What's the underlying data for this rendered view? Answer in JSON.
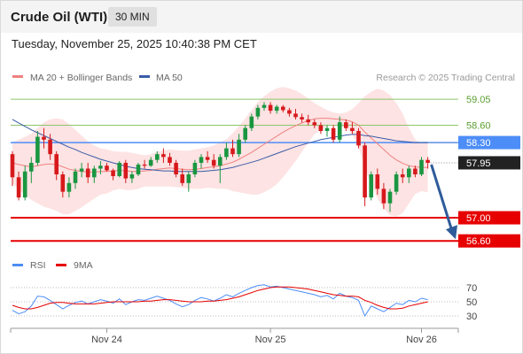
{
  "header": {
    "instrument": "Crude Oil (WTI)",
    "timeframe": "30 MIN",
    "timestamp": "Tuesday, November 25, 2025 10:40:38 PM CET"
  },
  "legend": {
    "ma20": "MA 20 + Bollinger Bands",
    "ma50": "MA 50",
    "credit": "Research © 2025 Trading Central",
    "rsi": "RSI",
    "ma9": "9MA"
  },
  "colors": {
    "up": "#1a9641",
    "down": "#d7191c",
    "ma20": "#f08080",
    "ma50": "#3a5ba8",
    "band": "#fde3e3",
    "resistance": "#8cc56a",
    "pivot": "#4d8df7",
    "support": "#e60000",
    "arrow": "#2e5b9a"
  },
  "chart_data": [
    {
      "type": "candlestick",
      "title": "Crude Oil (WTI)",
      "timeframe": "30 MIN",
      "x_ticks": [
        "Nov 24",
        "Nov 25",
        "Nov 26"
      ],
      "ylim": [
        56.45,
        59.25
      ],
      "levels": [
        {
          "label": "59.05",
          "value": 59.05,
          "kind": "resistance"
        },
        {
          "label": "58.60",
          "value": 58.6,
          "kind": "resistance"
        },
        {
          "label": "58.30",
          "value": 58.3,
          "kind": "pivot"
        },
        {
          "label": "57.95",
          "value": 57.95,
          "kind": "last"
        },
        {
          "label": "57.00",
          "value": 57.0,
          "kind": "support"
        },
        {
          "label": "56.60",
          "value": 56.6,
          "kind": "support"
        }
      ],
      "ohlc": [
        [
          58.1,
          58.15,
          57.55,
          57.7
        ],
        [
          57.7,
          57.8,
          57.3,
          57.35
        ],
        [
          57.35,
          57.9,
          57.3,
          57.8
        ],
        [
          57.8,
          58.05,
          57.6,
          57.95
        ],
        [
          57.95,
          58.5,
          57.9,
          58.4
        ],
        [
          58.4,
          58.55,
          58.2,
          58.35
        ],
        [
          58.35,
          58.45,
          58.0,
          58.1
        ],
        [
          58.1,
          58.15,
          57.65,
          57.75
        ],
        [
          57.75,
          57.8,
          57.35,
          57.45
        ],
        [
          57.45,
          57.7,
          57.35,
          57.6
        ],
        [
          57.6,
          57.85,
          57.5,
          57.8
        ],
        [
          57.8,
          57.95,
          57.7,
          57.85
        ],
        [
          57.85,
          57.95,
          57.6,
          57.7
        ],
        [
          57.7,
          57.9,
          57.6,
          57.85
        ],
        [
          57.85,
          57.98,
          57.75,
          57.9
        ],
        [
          57.9,
          57.95,
          57.8,
          57.82
        ],
        [
          57.82,
          57.85,
          57.65,
          57.72
        ],
        [
          57.72,
          57.98,
          57.7,
          57.95
        ],
        [
          57.95,
          58.0,
          57.6,
          57.68
        ],
        [
          57.68,
          57.8,
          57.6,
          57.75
        ],
        [
          57.75,
          57.95,
          57.72,
          57.92
        ],
        [
          57.92,
          58.0,
          57.85,
          57.9
        ],
        [
          57.9,
          58.05,
          57.88,
          58.0
        ],
        [
          58.0,
          58.15,
          57.95,
          58.1
        ],
        [
          58.1,
          58.2,
          57.95,
          58.05
        ],
        [
          58.05,
          58.12,
          57.9,
          57.95
        ],
        [
          57.95,
          58.0,
          57.7,
          57.75
        ],
        [
          57.75,
          57.85,
          57.55,
          57.6
        ],
        [
          57.6,
          57.8,
          57.45,
          57.75
        ],
        [
          57.75,
          58.0,
          57.7,
          57.95
        ],
        [
          57.95,
          58.1,
          57.85,
          58.05
        ],
        [
          58.05,
          58.15,
          57.95,
          58.0
        ],
        [
          58.0,
          58.1,
          57.85,
          57.9
        ],
        [
          57.9,
          58.1,
          57.6,
          58.05
        ],
        [
          58.05,
          58.3,
          58.0,
          58.2
        ],
        [
          58.2,
          58.35,
          58.05,
          58.1
        ],
        [
          58.1,
          58.45,
          58.05,
          58.35
        ],
        [
          58.35,
          58.6,
          58.3,
          58.55
        ],
        [
          58.55,
          58.8,
          58.5,
          58.75
        ],
        [
          58.75,
          58.95,
          58.7,
          58.9
        ],
        [
          58.9,
          59.0,
          58.85,
          58.95
        ],
        [
          58.95,
          59.0,
          58.8,
          58.85
        ],
        [
          58.85,
          58.95,
          58.8,
          58.92
        ],
        [
          58.92,
          58.95,
          58.82,
          58.86
        ],
        [
          58.86,
          58.9,
          58.75,
          58.8
        ],
        [
          58.8,
          58.88,
          58.7,
          58.74
        ],
        [
          58.74,
          58.8,
          58.65,
          58.7
        ],
        [
          58.7,
          58.78,
          58.6,
          58.65
        ],
        [
          58.65,
          58.7,
          58.55,
          58.6
        ],
        [
          58.6,
          58.65,
          58.45,
          58.5
        ],
        [
          58.5,
          58.6,
          58.4,
          58.55
        ],
        [
          58.55,
          58.6,
          58.3,
          58.35
        ],
        [
          58.35,
          58.75,
          58.3,
          58.65
        ],
        [
          58.65,
          58.7,
          58.5,
          58.55
        ],
        [
          58.55,
          58.65,
          58.45,
          58.5
        ],
        [
          58.5,
          58.55,
          58.2,
          58.25
        ],
        [
          58.25,
          58.3,
          57.2,
          57.35
        ],
        [
          57.35,
          57.8,
          57.3,
          57.75
        ],
        [
          57.75,
          57.85,
          57.4,
          57.5
        ],
        [
          57.5,
          57.6,
          57.15,
          57.25
        ],
        [
          57.25,
          57.5,
          57.1,
          57.45
        ],
        [
          57.45,
          57.8,
          57.4,
          57.75
        ],
        [
          57.75,
          57.85,
          57.6,
          57.7
        ],
        [
          57.7,
          57.9,
          57.6,
          57.85
        ],
        [
          57.85,
          57.9,
          57.7,
          57.75
        ],
        [
          57.75,
          58.05,
          57.72,
          58.0
        ],
        [
          58.0,
          58.05,
          57.85,
          57.95
        ]
      ],
      "ma20": [
        57.95,
        57.92,
        57.9,
        57.88,
        57.9,
        57.92,
        57.93,
        57.92,
        57.88,
        57.84,
        57.82,
        57.8,
        57.79,
        57.79,
        57.8,
        57.8,
        57.81,
        57.82,
        57.81,
        57.8,
        57.8,
        57.81,
        57.82,
        57.84,
        57.85,
        57.86,
        57.85,
        57.84,
        57.83,
        57.84,
        57.85,
        57.87,
        57.88,
        57.9,
        57.93,
        57.96,
        58.01,
        58.07,
        58.13,
        58.2,
        58.27,
        58.34,
        58.41,
        58.48,
        58.54,
        58.59,
        58.64,
        58.68,
        58.71,
        58.72,
        58.72,
        58.71,
        58.7,
        58.69,
        58.66,
        58.6,
        58.48,
        58.38,
        58.28,
        58.18,
        58.08,
        58.0,
        57.94,
        57.9,
        57.88,
        57.87,
        57.87
      ],
      "bb_upper": [
        58.3,
        58.35,
        58.4,
        58.45,
        58.55,
        58.65,
        58.7,
        58.72,
        58.7,
        58.62,
        58.52,
        58.42,
        58.32,
        58.25,
        58.2,
        58.18,
        58.15,
        58.14,
        58.14,
        58.12,
        58.1,
        58.08,
        58.1,
        58.14,
        58.16,
        58.18,
        58.17,
        58.16,
        58.16,
        58.18,
        58.2,
        58.22,
        58.25,
        58.3,
        58.36,
        58.46,
        58.58,
        58.72,
        58.86,
        59.0,
        59.1,
        59.18,
        59.24,
        59.26,
        59.24,
        59.2,
        59.14,
        59.06,
        58.98,
        58.92,
        58.86,
        58.82,
        58.8,
        58.82,
        58.88,
        58.98,
        59.1,
        59.18,
        59.23,
        59.2,
        59.12,
        58.98,
        58.8,
        58.55,
        58.35,
        58.28,
        58.3
      ],
      "bb_lower": [
        57.6,
        57.49,
        57.4,
        57.31,
        57.25,
        57.19,
        57.16,
        57.12,
        57.06,
        57.06,
        57.12,
        57.18,
        57.26,
        57.33,
        57.4,
        57.42,
        57.47,
        57.5,
        57.48,
        57.48,
        57.5,
        57.54,
        57.54,
        57.54,
        57.54,
        57.54,
        57.53,
        57.52,
        57.5,
        57.5,
        57.5,
        57.52,
        57.51,
        57.5,
        57.5,
        57.46,
        57.44,
        57.42,
        57.4,
        57.4,
        57.44,
        57.5,
        57.58,
        57.7,
        57.84,
        57.98,
        58.14,
        58.3,
        58.44,
        58.52,
        58.58,
        58.6,
        58.58,
        58.56,
        58.44,
        58.22,
        57.86,
        57.58,
        57.33,
        57.16,
        57.04,
        57.02,
        57.08,
        57.25,
        57.41,
        57.46,
        57.44
      ],
      "ma50": [
        58.7,
        58.64,
        58.58,
        58.52,
        58.47,
        58.42,
        58.37,
        58.32,
        58.27,
        58.22,
        58.18,
        58.13,
        58.09,
        58.05,
        58.01,
        57.98,
        57.95,
        57.92,
        57.89,
        57.87,
        57.85,
        57.84,
        57.83,
        57.82,
        57.81,
        57.81,
        57.8,
        57.8,
        57.8,
        57.8,
        57.8,
        57.81,
        57.82,
        57.83,
        57.85,
        57.87,
        57.9,
        57.93,
        57.96,
        57.99,
        58.03,
        58.07,
        58.11,
        58.15,
        58.19,
        58.23,
        58.26,
        58.29,
        58.32,
        58.35,
        58.37,
        58.39,
        58.41,
        58.43,
        58.44,
        58.44,
        58.42,
        58.41,
        58.39,
        58.37,
        58.35,
        58.33,
        58.32,
        58.31,
        58.3,
        58.3,
        58.3
      ]
    },
    {
      "type": "line",
      "title": "RSI",
      "y_ticks": [
        70,
        50,
        30
      ],
      "ylim": [
        20,
        80
      ],
      "series": [
        {
          "name": "RSI",
          "values": [
            38,
            33,
            36,
            44,
            58,
            57,
            52,
            46,
            40,
            45,
            49,
            51,
            47,
            50,
            53,
            51,
            48,
            54,
            46,
            50,
            53,
            52,
            55,
            58,
            55,
            52,
            47,
            43,
            46,
            52,
            56,
            54,
            51,
            55,
            60,
            57,
            62,
            66,
            70,
            73,
            74,
            71,
            72,
            70,
            68,
            66,
            64,
            62,
            60,
            57,
            59,
            54,
            62,
            58,
            56,
            52,
            30,
            44,
            40,
            36,
            42,
            48,
            46,
            52,
            50,
            55,
            53
          ]
        },
        {
          "name": "9MA",
          "values": [
            45,
            42,
            40,
            40,
            42,
            45,
            48,
            49,
            49,
            48,
            47,
            47,
            47,
            47,
            48,
            49,
            50,
            50,
            50,
            50,
            50,
            51,
            51,
            52,
            53,
            53,
            52,
            51,
            50,
            50,
            50,
            51,
            51,
            52,
            53,
            55,
            57,
            60,
            63,
            66,
            68,
            70,
            71,
            71,
            71,
            70,
            69,
            68,
            66,
            64,
            62,
            60,
            59,
            58,
            58,
            57,
            52,
            49,
            45,
            42,
            40,
            40,
            41,
            44,
            46,
            48,
            50
          ]
        }
      ]
    }
  ]
}
